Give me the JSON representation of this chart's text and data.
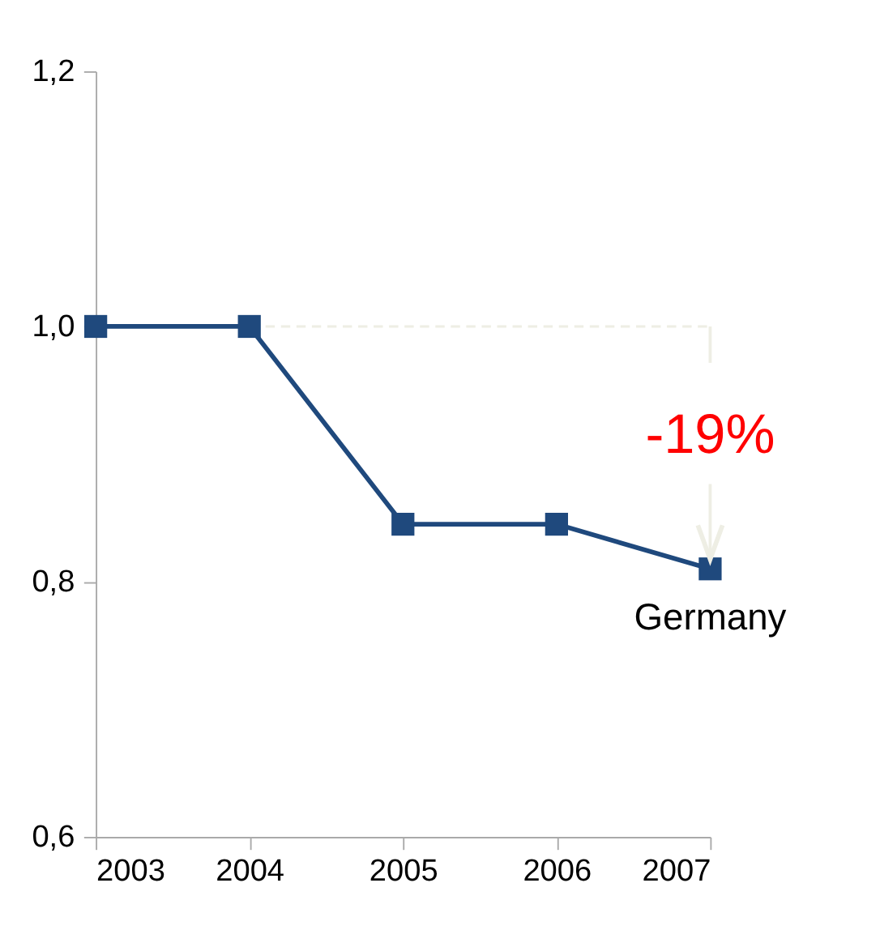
{
  "chart_data": {
    "type": "line",
    "categories": [
      "2003",
      "2004",
      "2005",
      "2006",
      "2007"
    ],
    "series": [
      {
        "name": "Germany",
        "color": "#1f497d",
        "values": [
          1.0,
          1.0,
          0.845,
          0.845,
          0.81
        ]
      }
    ],
    "marker": "square",
    "line_style": "solid",
    "grid": false,
    "legend": false,
    "ylim": [
      0.6,
      1.2
    ],
    "yticks": [
      {
        "value": 0.6,
        "label": "0,6"
      },
      {
        "value": 0.8,
        "label": "0,8"
      },
      {
        "value": 1.0,
        "label": "1,0"
      },
      {
        "value": 1.2,
        "label": "1,2"
      }
    ],
    "ref_lines": [
      {
        "axis": "y",
        "value": 1.0,
        "color": "#eeeee4",
        "line_style": "dashed"
      }
    ],
    "annotations": [
      "-19%"
    ]
  }
}
